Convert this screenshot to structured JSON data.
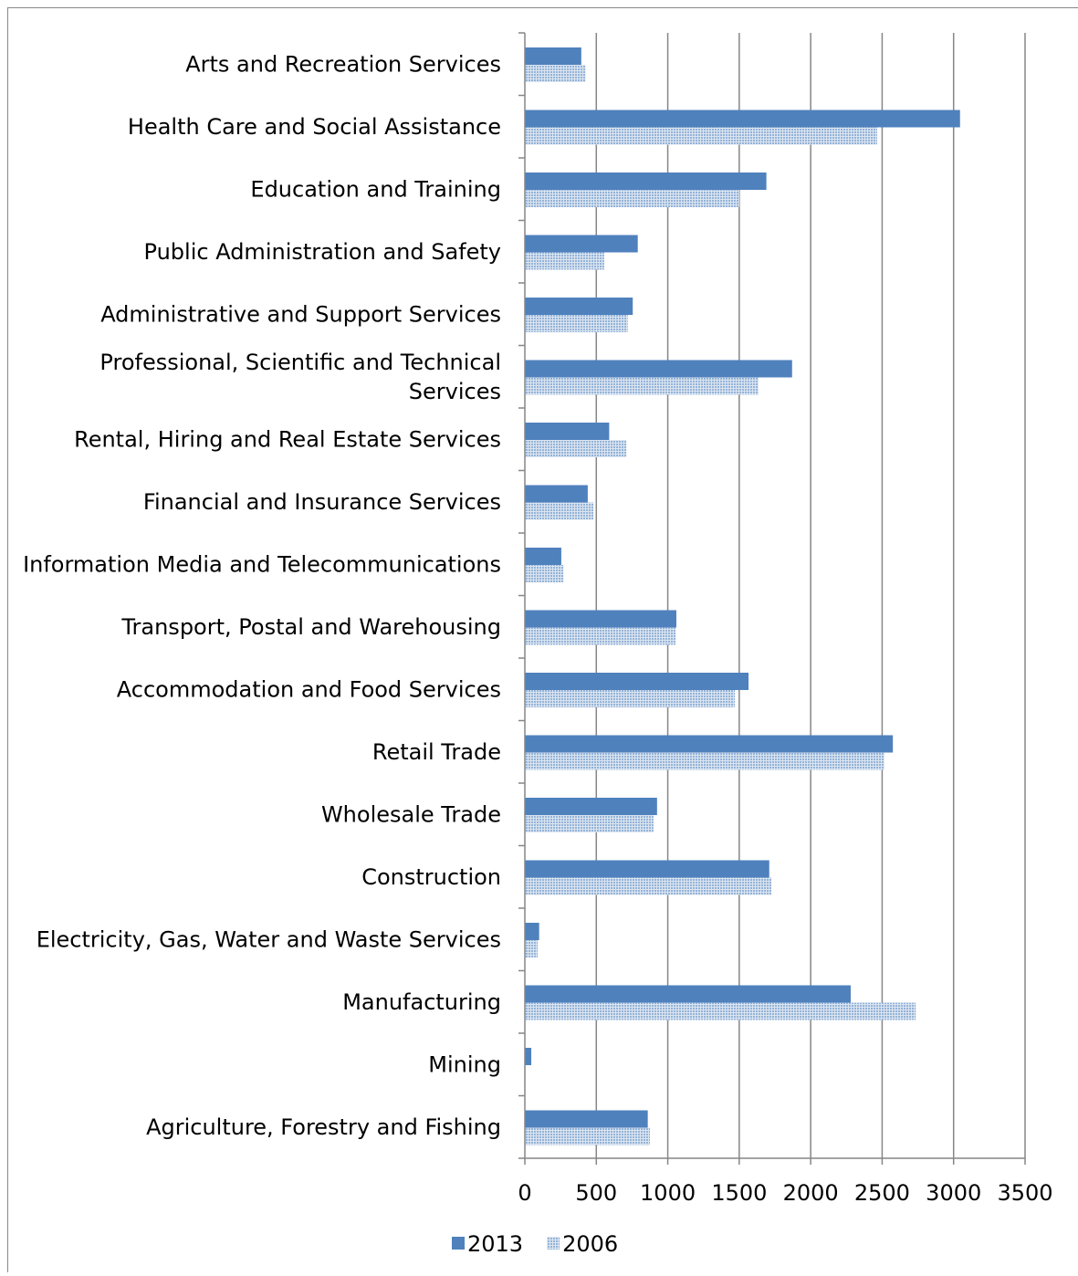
{
  "chart_data": {
    "type": "hbar",
    "categories": [
      "Arts and Recreation Services",
      "Health Care and Social Assistance",
      "Education and Training",
      "Public Administration and Safety",
      "Administrative and Support Services",
      "Professional, Scientific and Technical Services",
      "Rental, Hiring and Real Estate Services",
      "Financial and Insurance Services",
      "Information Media and Telecommunications",
      "Transport, Postal and Warehousing",
      "Accommodation and Food Services",
      "Retail Trade",
      "Wholesale Trade",
      "Construction",
      "Electricity, Gas, Water and Waste Services",
      "Manufacturing",
      "Mining",
      "Agriculture, Forestry and Fishing"
    ],
    "series": [
      {
        "name": "2013",
        "color": "#4f81bd",
        "values": [
          395,
          3045,
          1690,
          790,
          755,
          1870,
          590,
          440,
          255,
          1060,
          1565,
          2575,
          925,
          1710,
          100,
          2280,
          45,
          860
        ]
      },
      {
        "name": "2006",
        "color": "#95b3d7",
        "pattern": "dotted",
        "values": [
          425,
          2465,
          1500,
          555,
          720,
          1635,
          710,
          480,
          270,
          1055,
          1470,
          2515,
          900,
          1725,
          90,
          2735,
          5,
          875
        ]
      }
    ],
    "xlim": [
      0,
      3500
    ],
    "xticks": [
      0,
      500,
      1000,
      1500,
      2000,
      2500,
      3000,
      3500
    ],
    "grid": true,
    "legend": "bottom"
  }
}
